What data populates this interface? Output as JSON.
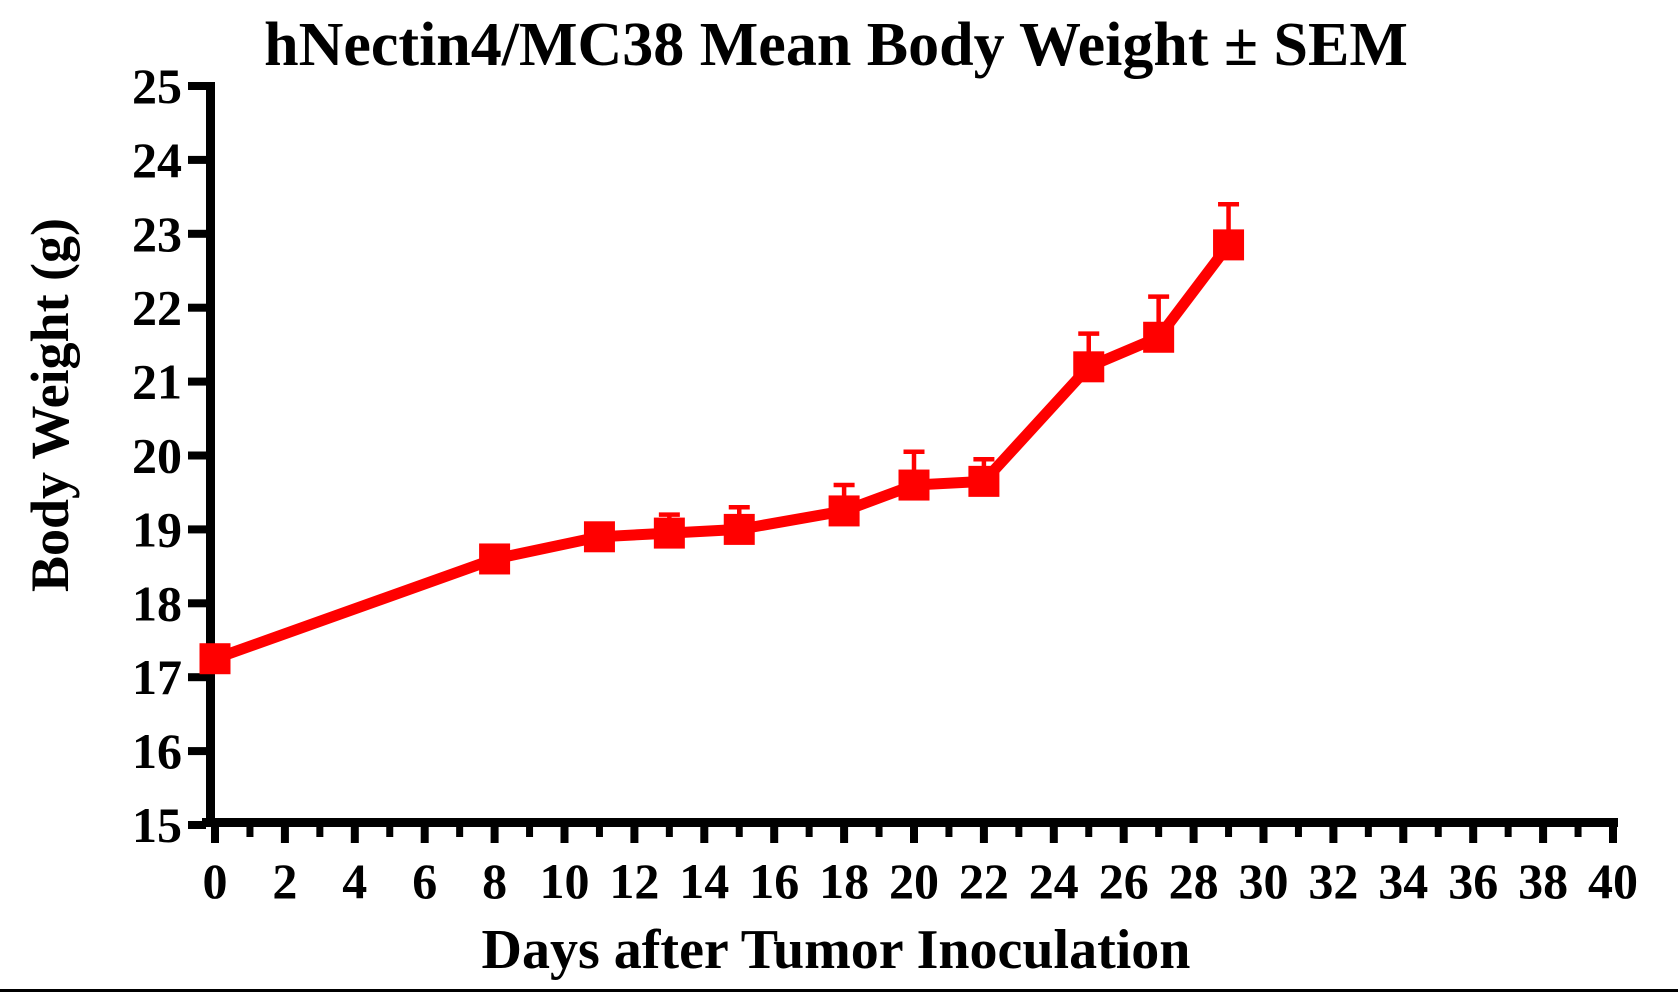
{
  "colors": {
    "series": "#FF0000",
    "axis": "#000000",
    "background": "#FFFFFF"
  },
  "chart_data": {
    "type": "line",
    "title": "hNectin4/MC38 Mean Body Weight ± SEM",
    "xlabel": "Days after Tumor Inoculation",
    "ylabel": "Body Weight (g)",
    "xlim": [
      0,
      40
    ],
    "ylim": [
      15,
      25
    ],
    "x_major_ticks": [
      0,
      2,
      4,
      6,
      8,
      10,
      12,
      14,
      16,
      18,
      20,
      22,
      24,
      26,
      28,
      30,
      32,
      34,
      36,
      38,
      40
    ],
    "x_minor_ticks": [
      1,
      3,
      5,
      7,
      9,
      11,
      13,
      15,
      17,
      19,
      21,
      23,
      25,
      27,
      29,
      31,
      33,
      35,
      37,
      39
    ],
    "y_ticks": [
      15,
      16,
      17,
      18,
      19,
      20,
      21,
      22,
      23,
      24,
      25
    ],
    "grid": false,
    "legend": "none",
    "error_bars": "SEM, upper whisker visible",
    "series": [
      {
        "name": "hNectin4/MC38",
        "color": "#FF0000",
        "marker": "filled-square",
        "x": [
          0,
          8,
          11,
          13,
          15,
          18,
          20,
          22,
          25,
          27,
          29
        ],
        "y": [
          17.25,
          18.6,
          18.9,
          18.95,
          19.0,
          19.25,
          19.6,
          19.65,
          21.2,
          21.6,
          22.85
        ],
        "sem": [
          0.1,
          0.1,
          0.1,
          0.25,
          0.3,
          0.35,
          0.45,
          0.3,
          0.45,
          0.55,
          0.55
        ]
      }
    ]
  }
}
